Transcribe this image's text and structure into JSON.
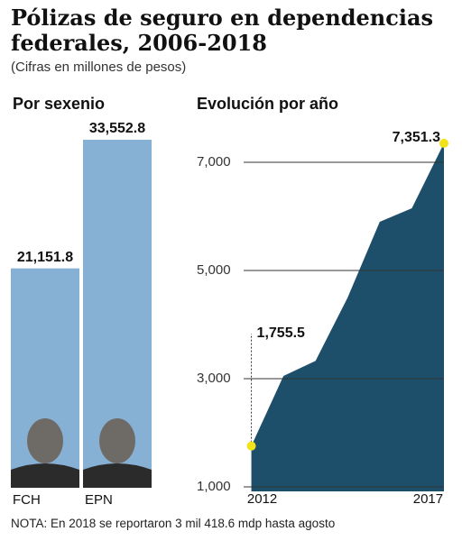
{
  "header": {
    "title": "Pólizas de seguro en dependencias federales, 2006-2018",
    "subtitle": "(Cifras en millones de pesos)"
  },
  "chart_data": [
    {
      "type": "bar",
      "title": "Por sexenio",
      "categories": [
        "FCH",
        "EPN"
      ],
      "values": [
        21151.8,
        33552.8
      ],
      "value_labels": [
        "21,151.8",
        "33,552.8"
      ],
      "color": "#86b0d4"
    },
    {
      "type": "area",
      "title": "Evolución por año",
      "x": [
        2012,
        2013,
        2014,
        2015,
        2016,
        2017,
        2018
      ],
      "values": [
        1755.5,
        3050,
        3330,
        4500,
        5900,
        6150,
        7351.3
      ],
      "value_labels": [
        "1,755.5",
        null,
        null,
        null,
        null,
        null,
        "7,351.3"
      ],
      "color": "#1d4f6b",
      "xlim": [
        2011.9,
        2018
      ],
      "xticks": [
        2012,
        2017
      ],
      "ylim": [
        1000,
        7400
      ],
      "yticks": [
        {
          "value": 1000,
          "label": "1,000"
        },
        {
          "value": 3000,
          "label": "3,000"
        },
        {
          "value": 5000,
          "label": "5,000"
        },
        {
          "value": 7000,
          "label": "7,000"
        }
      ],
      "grid": true
    }
  ],
  "note": "NOTA: En 2018 se reportaron 3 mil 418.6 mdp hasta agosto"
}
